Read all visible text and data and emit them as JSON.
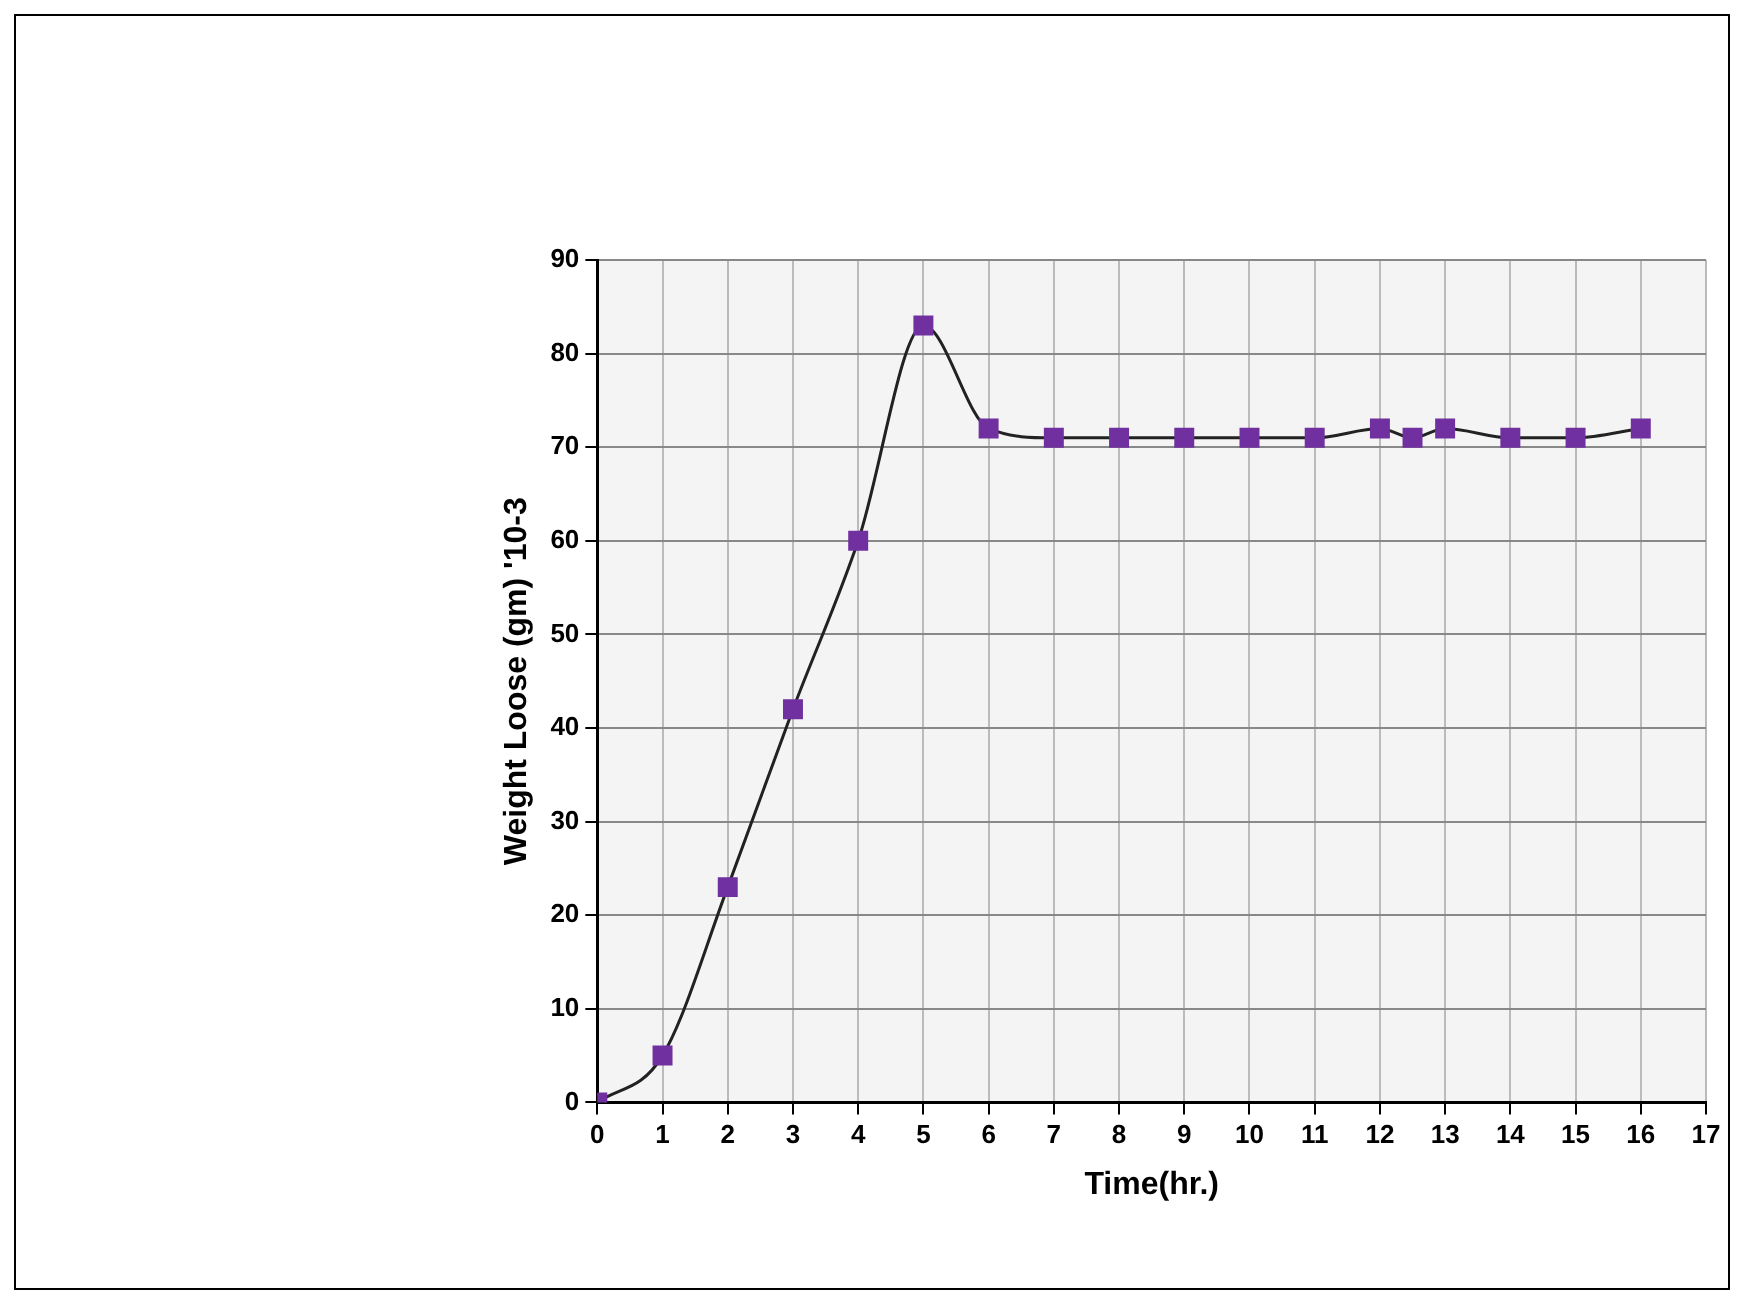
{
  "chart_data": {
    "type": "line",
    "xlabel": "Time(hr.)",
    "ylabel": "Weight Loose (gm) '10-3",
    "x": [
      0,
      1,
      2,
      3,
      4,
      5,
      6,
      7,
      8,
      9,
      10,
      11,
      12,
      12.5,
      13,
      14,
      15,
      16
    ],
    "series": [
      {
        "color": "#7030a0",
        "values": [
          0,
          5,
          23,
          42,
          60,
          83,
          72,
          71,
          71,
          71,
          71,
          71,
          72,
          71,
          72,
          71,
          71,
          72
        ]
      }
    ],
    "xlim": [
      0,
      17
    ],
    "xticks": [
      0,
      1,
      2,
      3,
      4,
      5,
      6,
      7,
      8,
      9,
      10,
      11,
      12,
      13,
      14,
      15,
      16,
      17
    ],
    "ylim": [
      0,
      90
    ],
    "yticks": [
      0,
      10,
      20,
      30,
      40,
      50,
      60,
      70,
      80,
      90
    ],
    "grid": true,
    "legend": false,
    "marker": "square",
    "line_style": "solid"
  }
}
